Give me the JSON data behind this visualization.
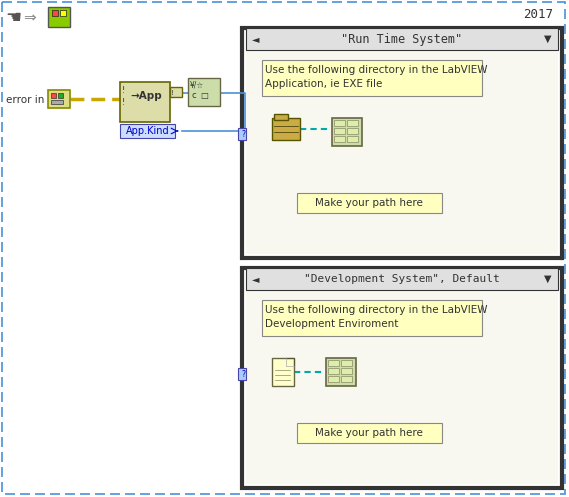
{
  "bg_color": "#ffffff",
  "outer_border_color": "#4a90d9",
  "outer_bg": "#ffffff",
  "case_border_color": "#555555",
  "case_bg": "#f0f0e0",
  "label_bg": "#ffffc0",
  "label_border": "#888888",
  "wire_color_yellow": "#c8a800",
  "wire_color_blue": "#4a90d9",
  "wire_color_teal": "#00aaaa",
  "title_year": "2017",
  "toolbar_icons": [
    15,
    10
  ],
  "error_in_label": "error in",
  "app_kind_label": "App.Kind",
  "case1_title": "\"Run Time System\"",
  "case1_text1": "Use the following directory in the LabVIEW",
  "case1_text2": "Application, ie EXE file",
  "case1_path_label": "Make your path here",
  "case2_title": "\"Development System\", Default",
  "case2_text1": "Use the following directory in the LabVIEW",
  "case2_text2": "Development Enviroment",
  "case2_path_label": "Make your path here",
  "figsize": [
    5.69,
    4.97
  ],
  "dpi": 100
}
